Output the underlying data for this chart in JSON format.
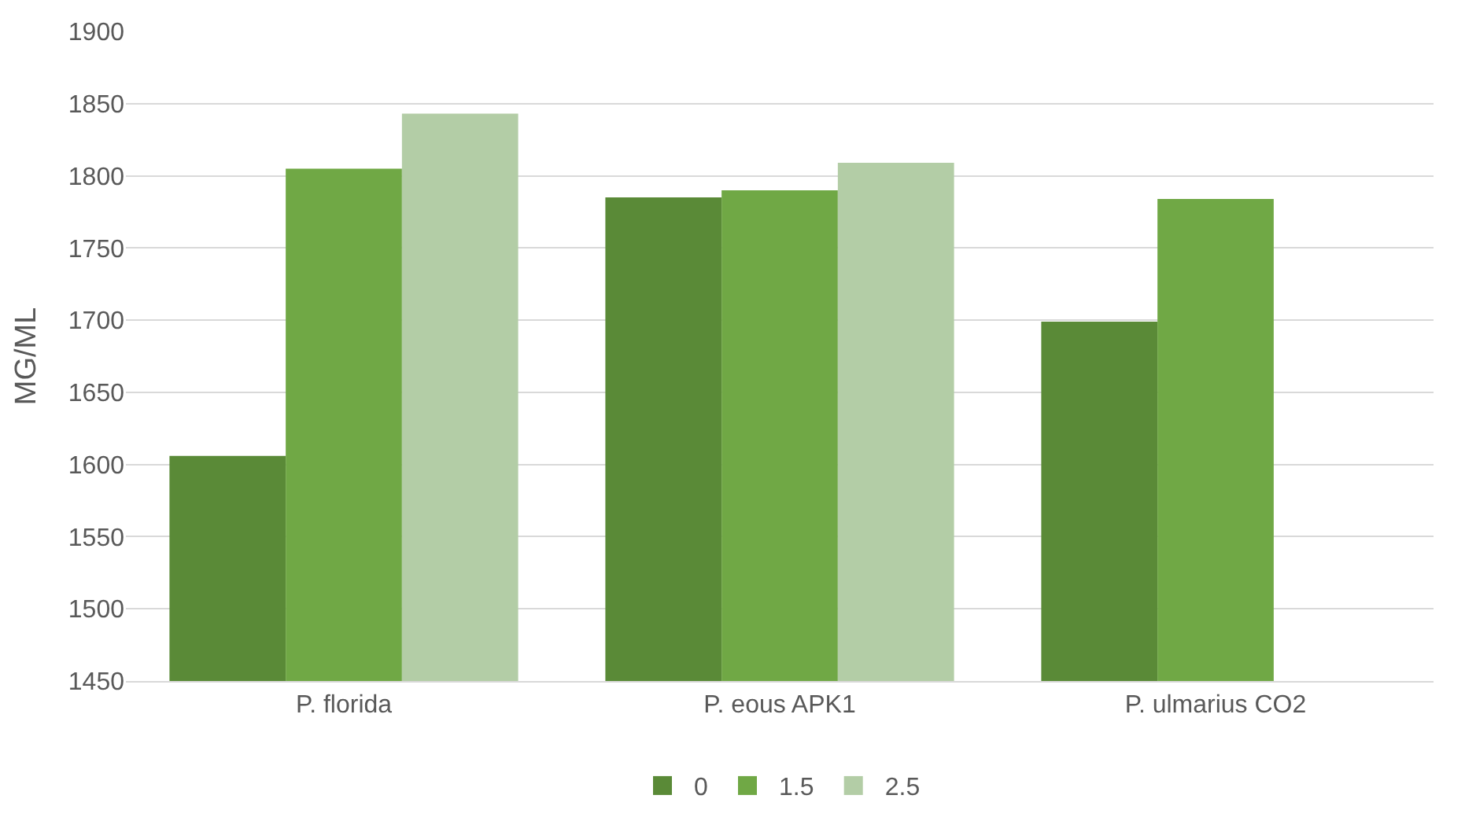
{
  "chart_data": {
    "type": "bar",
    "ylabel": "MG/ML",
    "categories": [
      "P. florida",
      "P. eous APK1",
      "P. ulmarius CO2"
    ],
    "series": [
      {
        "name": "0",
        "color": "#5a8a37",
        "values": [
          1606,
          1785,
          1699
        ]
      },
      {
        "name": "1.5",
        "color": "#70a845",
        "values": [
          1805,
          1790,
          1784
        ]
      },
      {
        "name": "2.5",
        "color": "#b3cda6",
        "values": [
          1843,
          1809,
          null
        ]
      }
    ],
    "ylim": [
      1450,
      1900
    ],
    "yticks": [
      1450,
      1500,
      1550,
      1600,
      1650,
      1700,
      1750,
      1800,
      1850,
      1900
    ],
    "grid": "y",
    "legend": "bottom"
  }
}
